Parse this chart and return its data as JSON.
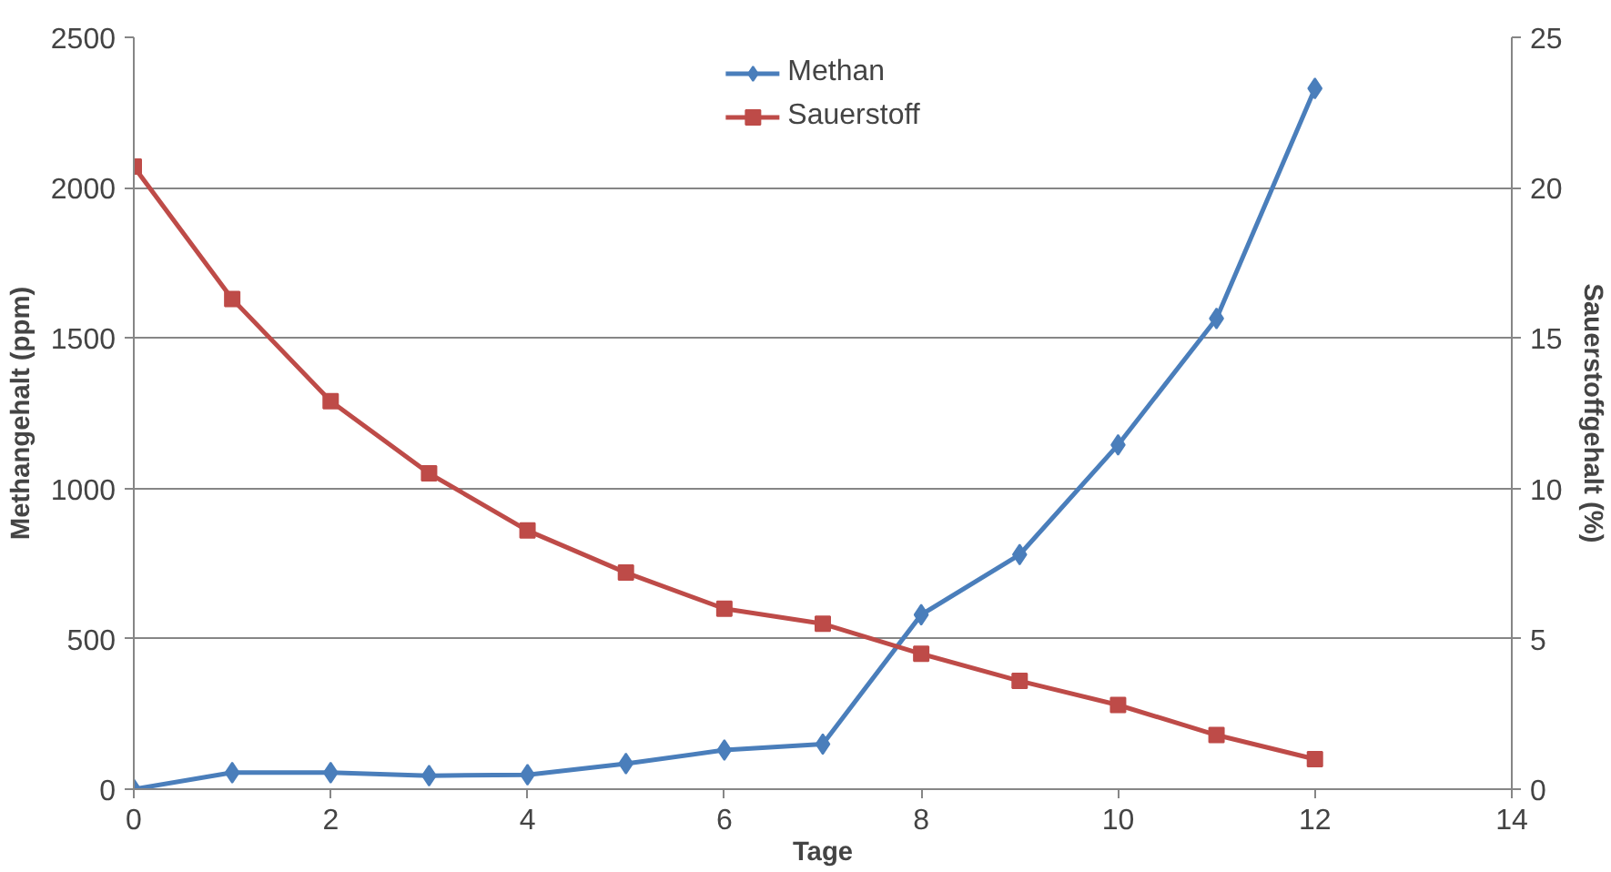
{
  "chart_data": {
    "type": "line",
    "xlabel": "Tage",
    "ylabel": "Methangehalt (ppm)",
    "y2label": "Sauerstoffgehalt (%)",
    "x": [
      0,
      1,
      2,
      3,
      4,
      5,
      6,
      7,
      8,
      9,
      10,
      11,
      12
    ],
    "series": [
      {
        "name": "Methan",
        "color": "#4a7ebb",
        "marker": "diamond",
        "values": [
          0,
          55,
          55,
          45,
          48,
          85,
          130,
          150,
          580,
          780,
          1145,
          1565,
          2330
        ]
      },
      {
        "name": "Sauerstoff",
        "color": "#be4b48",
        "marker": "square",
        "axis": "y2",
        "values": [
          20.7,
          16.3,
          12.9,
          10.5,
          8.6,
          7.2,
          6.0,
          5.5,
          4.5,
          3.6,
          2.8,
          1.8,
          1.0
        ]
      }
    ],
    "xlim": [
      0,
      14
    ],
    "xticks": [
      0,
      2,
      4,
      6,
      8,
      10,
      12,
      14
    ],
    "ylim": [
      0,
      2500
    ],
    "yticks": [
      0,
      500,
      1000,
      1500,
      2000,
      2500
    ],
    "y2lim": [
      0,
      25
    ],
    "y2ticks": [
      0,
      5,
      10,
      15,
      20,
      25
    ],
    "grid": "y",
    "legend": "top",
    "line_style": "solid"
  }
}
